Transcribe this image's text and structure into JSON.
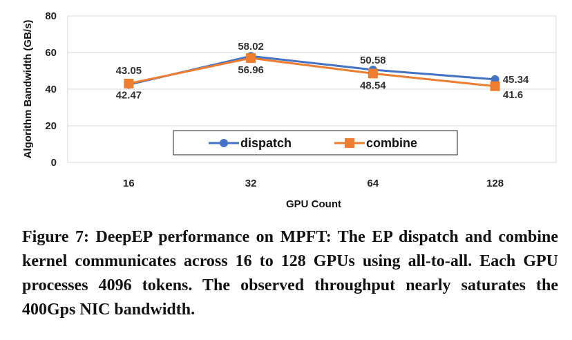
{
  "chart_data": {
    "type": "line",
    "categories": [
      "16",
      "32",
      "64",
      "128"
    ],
    "series": [
      {
        "name": "dispatch",
        "values": [
          42.47,
          58.02,
          50.58,
          45.34
        ],
        "color": "#4472C4",
        "marker": "circle"
      },
      {
        "name": "combine",
        "values": [
          43.05,
          56.96,
          48.54,
          41.6
        ],
        "color": "#ED7D31",
        "marker": "square"
      }
    ],
    "xlabel": "GPU Count",
    "ylabel": "Algorithm Bandwidth (GB/s)",
    "ylim": [
      0,
      80
    ],
    "yticks": [
      "0",
      "20",
      "40",
      "60",
      "80"
    ],
    "grid": true,
    "legend_position": "bottom-center",
    "data_labels": {
      "dispatch": [
        "42.47",
        "58.02",
        "50.58",
        "45.34"
      ],
      "combine": [
        "43.05",
        "56.96",
        "48.54",
        "41.6"
      ]
    }
  },
  "caption": "Figure 7: DeepEP performance on MPFT: The EP dispatch and combine kernel communicates across 16 to 128 GPUs using all-to-all. Each GPU processes 4096 tokens. The observed throughput nearly saturates the 400Gps NIC bandwidth."
}
